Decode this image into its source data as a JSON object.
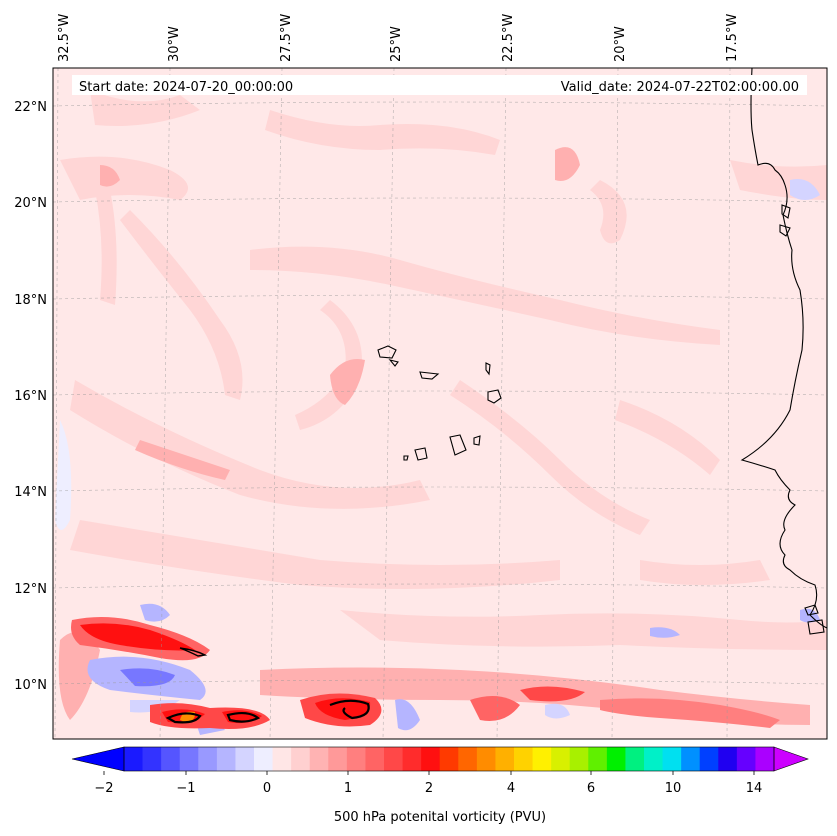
{
  "header": {
    "start_date": "Start date: 2024-07-20_00:00:00",
    "valid_date": "Valid_date: 2024-07-22T02:00:00.00"
  },
  "longitude_labels": [
    "32.5°W",
    "30°W",
    "27.5°W",
    "25°W",
    "22.5°W",
    "20°W",
    "17.5°W"
  ],
  "latitude_labels": [
    "22°N",
    "20°N",
    "18°N",
    "16°N",
    "14°N",
    "12°N",
    "10°N"
  ],
  "colorbar": {
    "label": "500 hPa potenital vorticity (PVU)",
    "tick_labels": [
      "−2",
      "−1",
      "0",
      "1",
      "2",
      "4",
      "6",
      "10",
      "14"
    ],
    "colors": [
      "#1a1aff",
      "#3333ff",
      "#5555ff",
      "#7777ff",
      "#9999ff",
      "#b5b5ff",
      "#d4d4ff",
      "#eeeeff",
      "#ffe6e6",
      "#ffd0d0",
      "#ffb3b3",
      "#ff9999",
      "#ff7f7f",
      "#ff6464",
      "#ff4848",
      "#ff2c2c",
      "#ff1010",
      "#ff3a00",
      "#ff6600",
      "#ff8c00",
      "#ffb000",
      "#ffd200",
      "#fff000",
      "#d8f000",
      "#a8f000",
      "#60f000",
      "#00f000",
      "#00f080",
      "#00f0c8",
      "#00e0f0",
      "#0090ff",
      "#0040ff",
      "#2000f0",
      "#6600ff",
      "#aa00ff"
    ],
    "under_color": "#0000ff",
    "over_color": "#cc00ff"
  }
}
